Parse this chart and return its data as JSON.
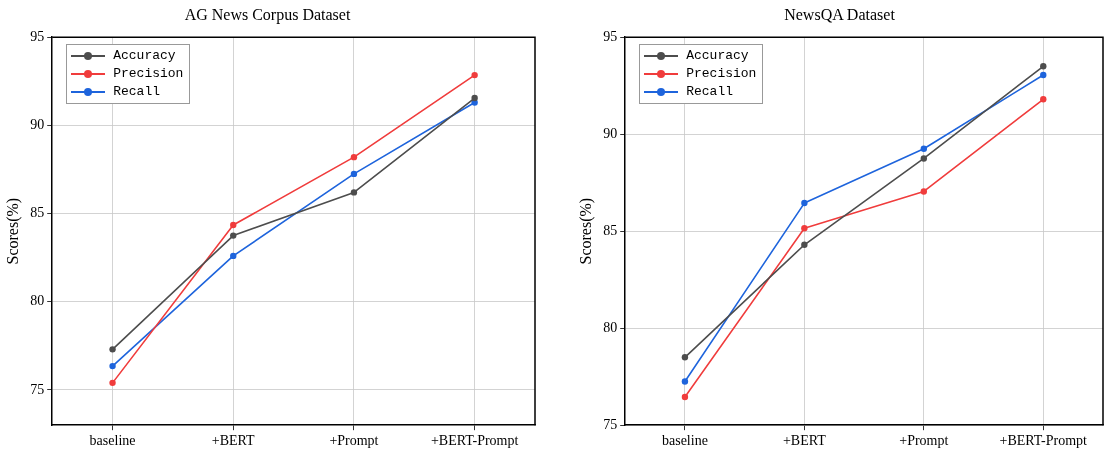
{
  "chart_data": [
    {
      "type": "line",
      "title": "AG News Corpus Dataset",
      "ylabel": "Scores(%)",
      "categories": [
        "baseline",
        "+BERT",
        "+Prompt",
        "+BERT-Prompt"
      ],
      "ylim": [
        73,
        95
      ],
      "yticks": [
        75,
        80,
        85,
        90,
        95
      ],
      "grid": true,
      "legend": "top left",
      "marker": "circle",
      "line_style": "solid",
      "series": [
        {
          "name": "Accuracy",
          "color": "#4d4d4d",
          "values": [
            77.3,
            83.75,
            86.2,
            91.55
          ]
        },
        {
          "name": "Precision",
          "color": "#f03c3c",
          "values": [
            75.4,
            84.35,
            88.2,
            92.85
          ]
        },
        {
          "name": "Recall",
          "color": "#1e64dc",
          "values": [
            76.35,
            82.6,
            87.25,
            91.3
          ]
        }
      ]
    },
    {
      "type": "line",
      "title": "NewsQA Dataset",
      "ylabel": "Scores(%)",
      "categories": [
        "baseline",
        "+BERT",
        "+Prompt",
        "+BERT-Prompt"
      ],
      "ylim": [
        75,
        95
      ],
      "yticks": [
        75,
        80,
        85,
        90,
        95
      ],
      "grid": true,
      "legend": "top left",
      "marker": "circle",
      "line_style": "solid",
      "series": [
        {
          "name": "Accuracy",
          "color": "#4d4d4d",
          "values": [
            78.5,
            84.3,
            88.75,
            93.5
          ]
        },
        {
          "name": "Precision",
          "color": "#f03c3c",
          "values": [
            76.45,
            85.15,
            87.05,
            91.8
          ]
        },
        {
          "name": "Recall",
          "color": "#1e64dc",
          "values": [
            77.25,
            86.45,
            89.25,
            93.05
          ]
        }
      ]
    }
  ]
}
